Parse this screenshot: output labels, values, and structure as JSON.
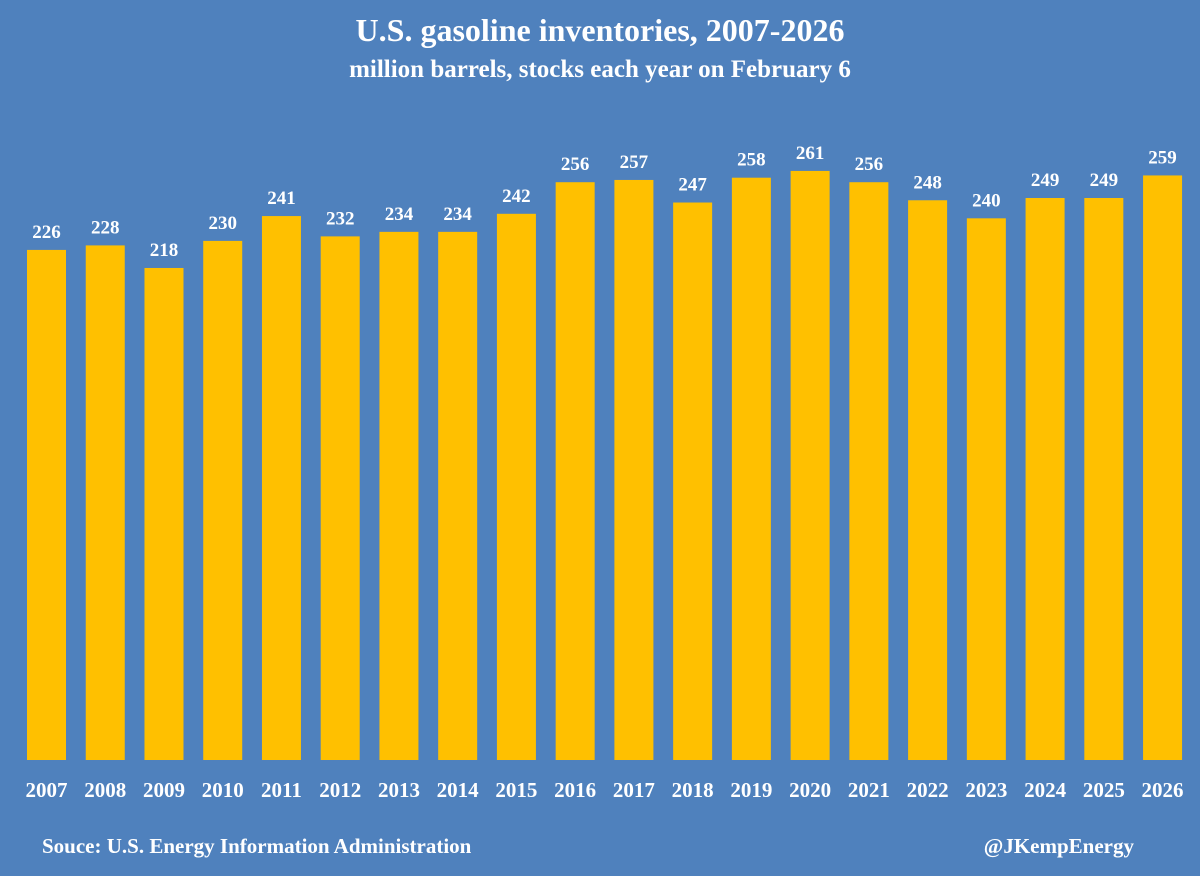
{
  "chart_data": {
    "type": "bar",
    "title": "U.S. gasoline inventories, 2007-2026",
    "subtitle": "million barrels, stocks each year on February 6",
    "categories": [
      "2007",
      "2008",
      "2009",
      "2010",
      "2011",
      "2012",
      "2013",
      "2014",
      "2015",
      "2016",
      "2017",
      "2018",
      "2019",
      "2020",
      "2021",
      "2022",
      "2023",
      "2024",
      "2025",
      "2026"
    ],
    "values": [
      226,
      228,
      218,
      230,
      241,
      232,
      234,
      234,
      242,
      256,
      257,
      247,
      258,
      261,
      256,
      248,
      240,
      249,
      249,
      259
    ],
    "ylim": [
      0,
      270
    ],
    "grid": false,
    "data_labels": true,
    "colors": {
      "background": "#4f81bd",
      "bar": "#ffc000",
      "text": "#ffffff"
    }
  },
  "footer": {
    "source": "Souce: U.S. Energy Information Administration",
    "handle": "@JKempEnergy"
  }
}
